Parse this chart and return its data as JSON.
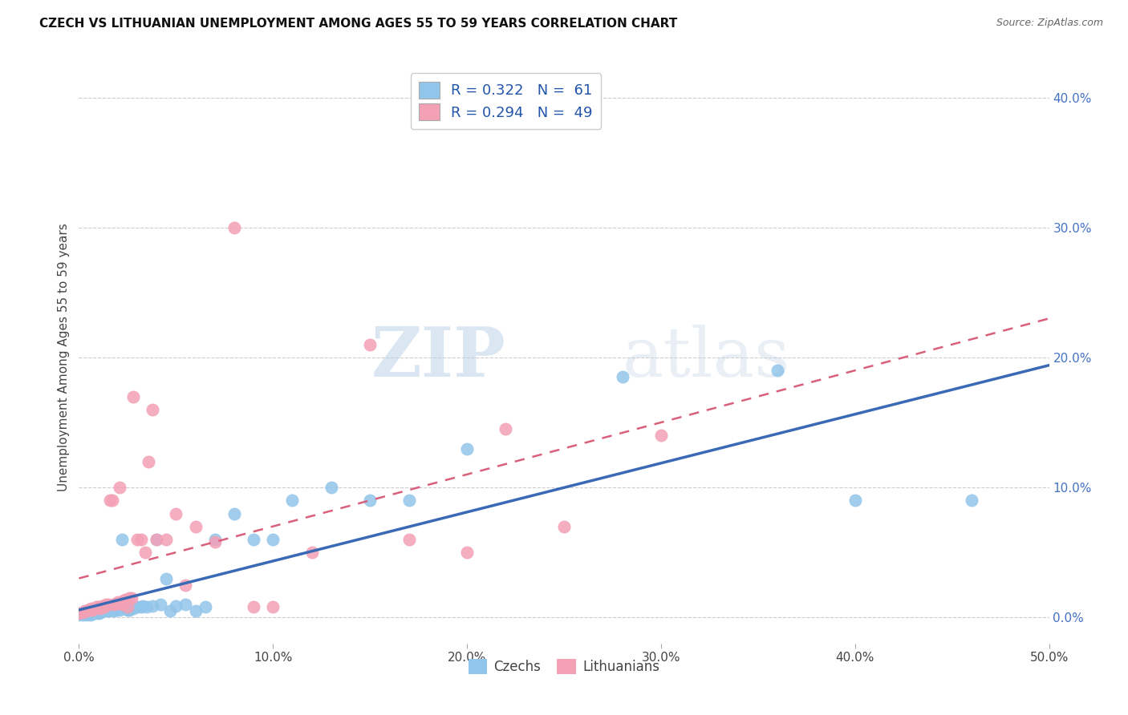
{
  "title": "CZECH VS LITHUANIAN UNEMPLOYMENT AMONG AGES 55 TO 59 YEARS CORRELATION CHART",
  "source": "Source: ZipAtlas.com",
  "ylabel": "Unemployment Among Ages 55 to 59 years",
  "xlim": [
    0.0,
    0.5
  ],
  "ylim": [
    -0.02,
    0.42
  ],
  "xticks": [
    0.0,
    0.1,
    0.2,
    0.3,
    0.4,
    0.5
  ],
  "xtick_labels": [
    "0.0%",
    "10.0%",
    "20.0%",
    "30.0%",
    "40.0%",
    "50.0%"
  ],
  "ytick_labels_right": [
    "0.0%",
    "10.0%",
    "20.0%",
    "30.0%",
    "40.0%"
  ],
  "yticks_right": [
    0.0,
    0.1,
    0.2,
    0.3,
    0.4
  ],
  "czech_color": "#92C5EA",
  "lithuanian_color": "#F4A0B5",
  "czech_R": 0.322,
  "czech_N": 61,
  "lithuanian_R": 0.294,
  "lithuanian_N": 49,
  "czech_line_color": "#3A6AB5",
  "lithuanian_line_color": "#D9607A",
  "legend_label_czech": "Czechs",
  "legend_label_lithuanian": "Lithuanians",
  "watermark_zip": "ZIP",
  "watermark_atlas": "atlas",
  "background_color": "#ffffff",
  "czech_scatter_x": [
    0.0,
    0.002,
    0.003,
    0.003,
    0.004,
    0.005,
    0.006,
    0.007,
    0.008,
    0.008,
    0.009,
    0.01,
    0.01,
    0.011,
    0.011,
    0.012,
    0.012,
    0.013,
    0.013,
    0.014,
    0.015,
    0.015,
    0.016,
    0.017,
    0.018,
    0.018,
    0.019,
    0.02,
    0.021,
    0.022,
    0.024,
    0.025,
    0.026,
    0.027,
    0.028,
    0.03,
    0.032,
    0.033,
    0.035,
    0.038,
    0.04,
    0.042,
    0.045,
    0.047,
    0.05,
    0.055,
    0.06,
    0.065,
    0.07,
    0.08,
    0.09,
    0.1,
    0.11,
    0.13,
    0.15,
    0.17,
    0.2,
    0.28,
    0.36,
    0.4,
    0.46
  ],
  "czech_scatter_y": [
    0.002,
    0.002,
    0.003,
    0.005,
    0.002,
    0.004,
    0.002,
    0.003,
    0.003,
    0.005,
    0.004,
    0.005,
    0.003,
    0.004,
    0.006,
    0.005,
    0.006,
    0.005,
    0.007,
    0.006,
    0.005,
    0.006,
    0.006,
    0.007,
    0.005,
    0.007,
    0.006,
    0.007,
    0.006,
    0.06,
    0.007,
    0.006,
    0.006,
    0.008,
    0.007,
    0.008,
    0.008,
    0.009,
    0.008,
    0.009,
    0.06,
    0.01,
    0.03,
    0.005,
    0.009,
    0.01,
    0.005,
    0.008,
    0.06,
    0.08,
    0.06,
    0.06,
    0.09,
    0.1,
    0.09,
    0.09,
    0.13,
    0.185,
    0.19,
    0.09,
    0.09
  ],
  "lithuanian_scatter_x": [
    0.0,
    0.002,
    0.003,
    0.004,
    0.005,
    0.006,
    0.007,
    0.008,
    0.009,
    0.01,
    0.011,
    0.012,
    0.013,
    0.014,
    0.015,
    0.016,
    0.017,
    0.018,
    0.019,
    0.02,
    0.021,
    0.022,
    0.023,
    0.024,
    0.025,
    0.026,
    0.027,
    0.028,
    0.03,
    0.032,
    0.034,
    0.036,
    0.038,
    0.04,
    0.045,
    0.05,
    0.055,
    0.06,
    0.07,
    0.08,
    0.09,
    0.1,
    0.12,
    0.15,
    0.17,
    0.2,
    0.22,
    0.25,
    0.3
  ],
  "lithuanian_scatter_y": [
    0.003,
    0.004,
    0.005,
    0.005,
    0.006,
    0.007,
    0.006,
    0.007,
    0.008,
    0.008,
    0.007,
    0.009,
    0.008,
    0.01,
    0.01,
    0.09,
    0.09,
    0.01,
    0.011,
    0.012,
    0.1,
    0.01,
    0.013,
    0.014,
    0.008,
    0.015,
    0.015,
    0.17,
    0.06,
    0.06,
    0.05,
    0.12,
    0.16,
    0.06,
    0.06,
    0.08,
    0.025,
    0.07,
    0.058,
    0.3,
    0.008,
    0.008,
    0.05,
    0.21,
    0.06,
    0.05,
    0.145,
    0.07,
    0.14
  ]
}
